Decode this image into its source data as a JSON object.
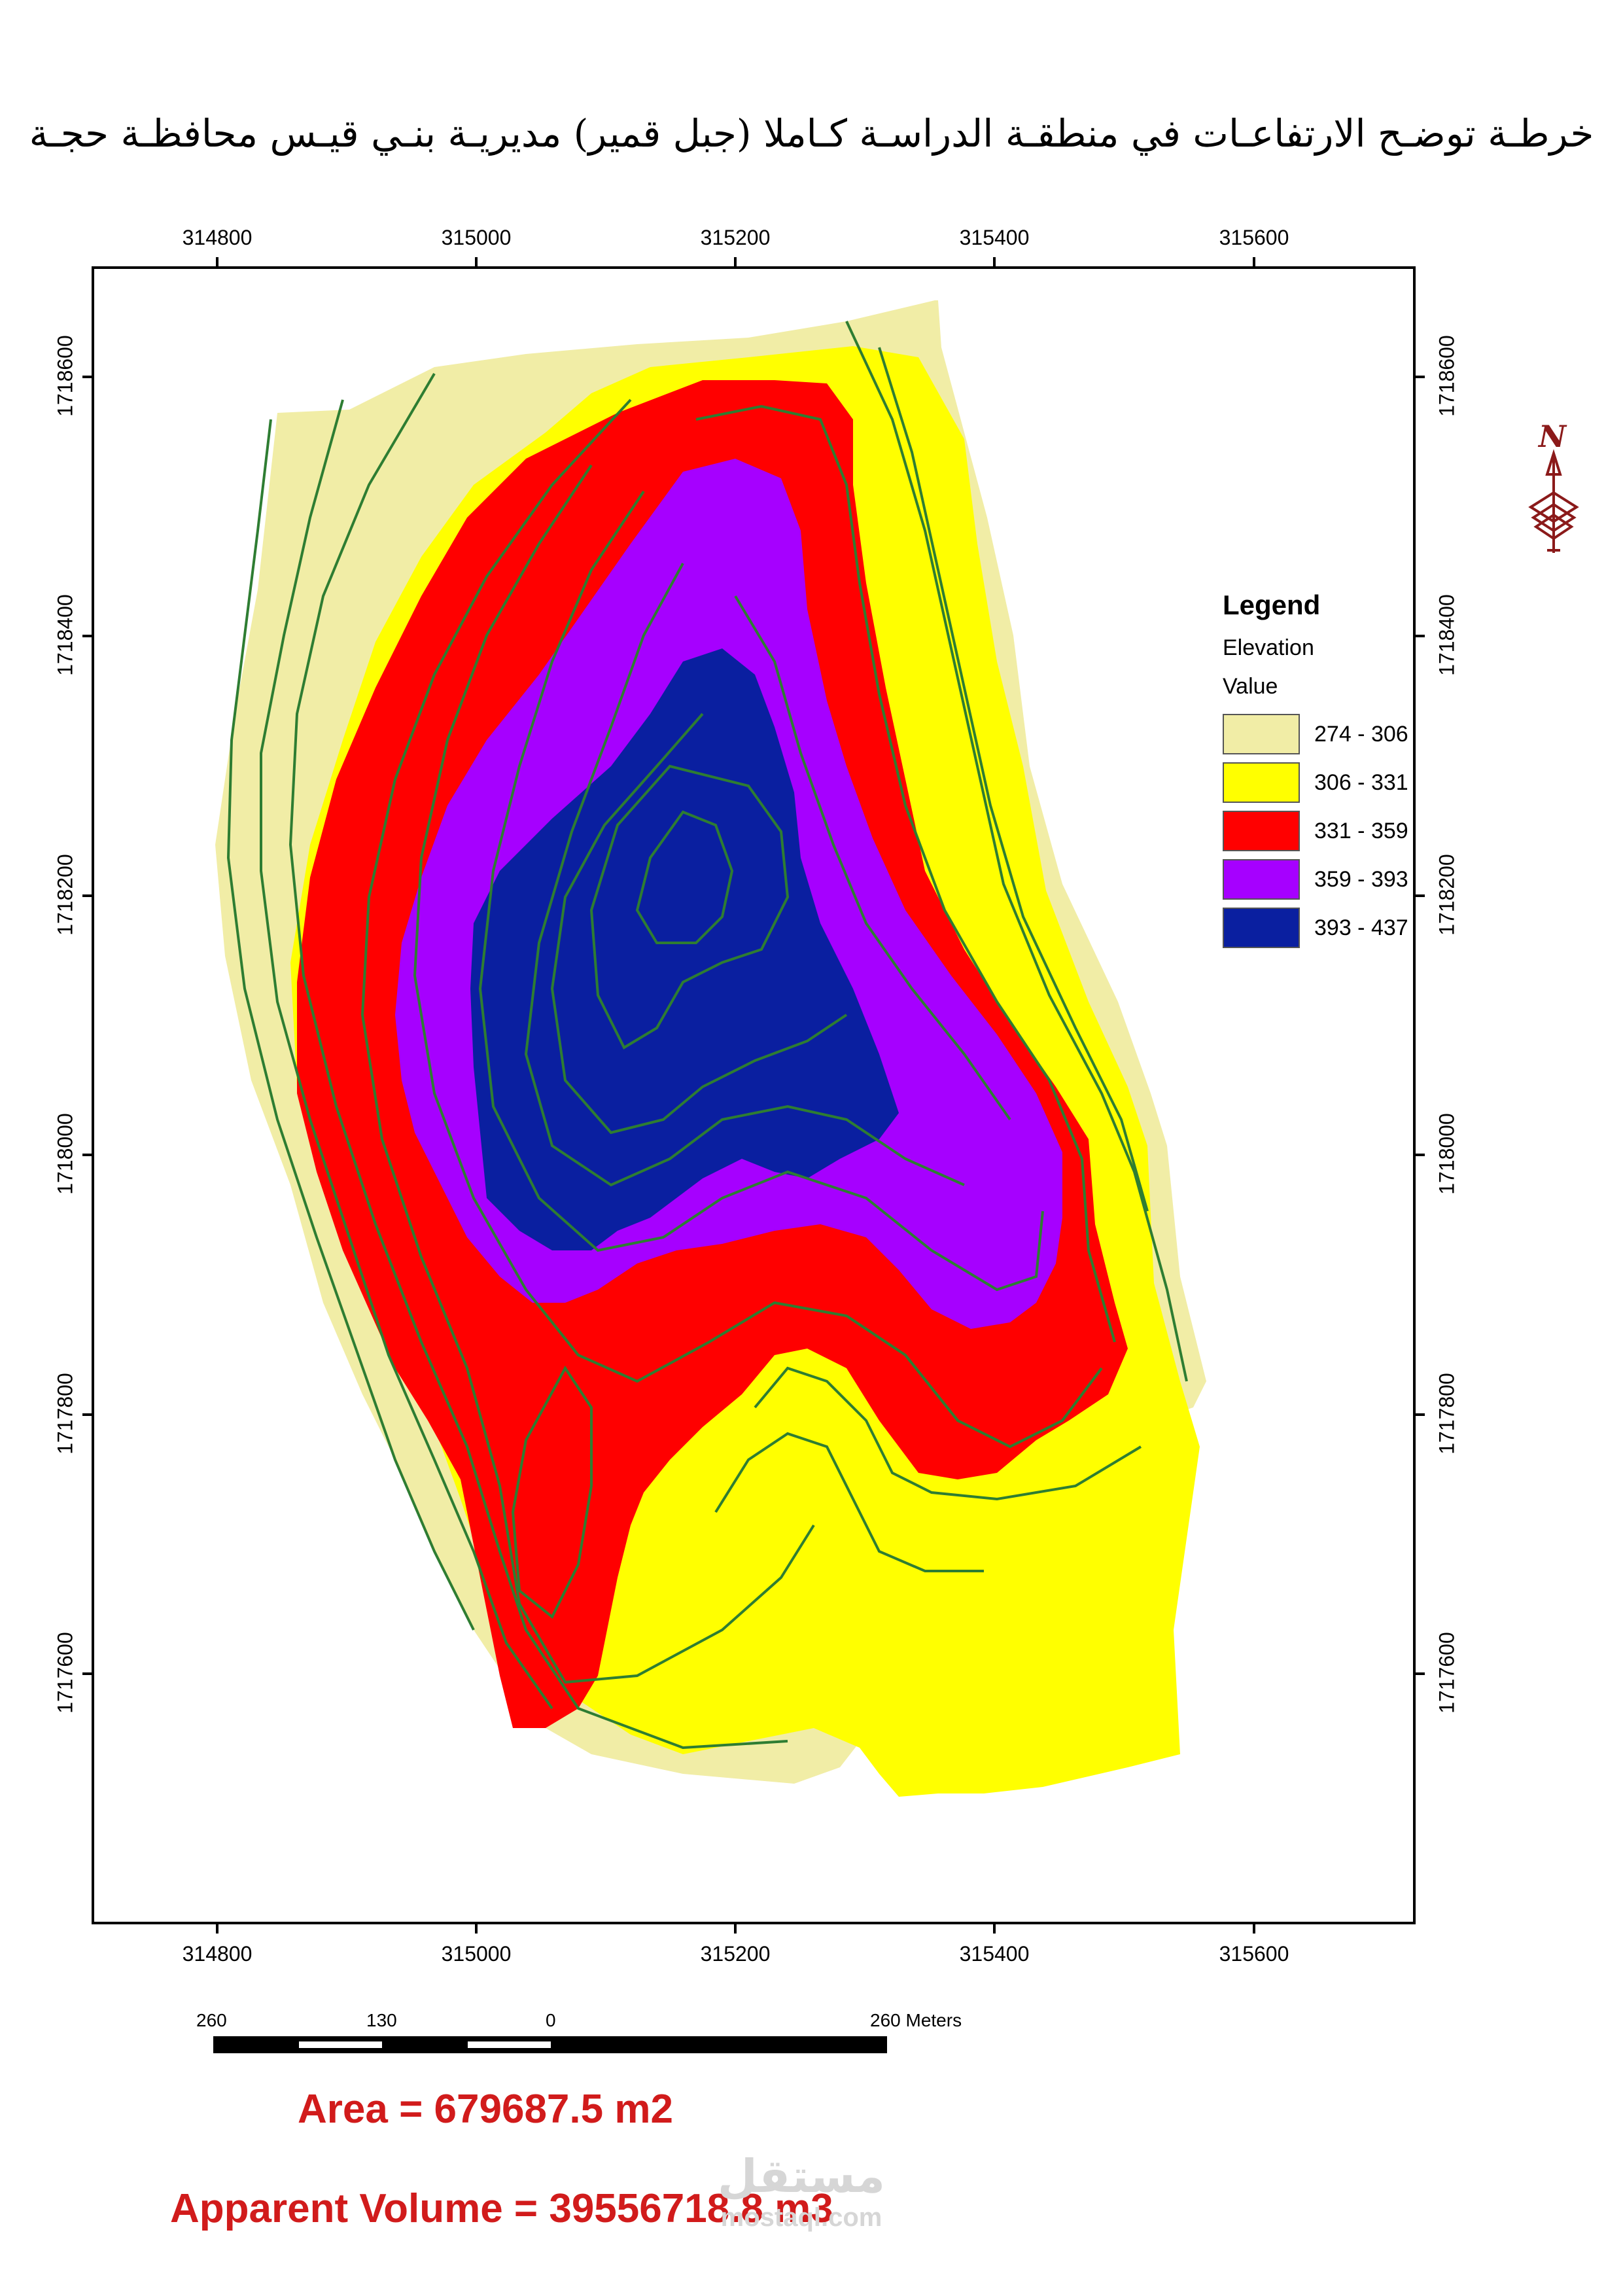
{
  "title": "خرطـة توضـح الارتفاعـات في منطقـة الدراسـة كـاملا (جبل قمير) مديريـة بنـي قيـس محافظـة حجـة",
  "axes": {
    "x_ticks": [
      "314800",
      "315000",
      "315200",
      "315400",
      "315600"
    ],
    "y_ticks": [
      "1718600",
      "1718400",
      "1718200",
      "1718000",
      "1717800",
      "1717600"
    ]
  },
  "legend": {
    "title": "Legend",
    "layer": "Elevation",
    "field": "Value",
    "classes": [
      {
        "label": "274 - 306",
        "color": "#f1eda6"
      },
      {
        "label": "306 - 331",
        "color": "#ffff00"
      },
      {
        "label": "331 - 359",
        "color": "#ff0000"
      },
      {
        "label": "359 - 393",
        "color": "#a600ff"
      },
      {
        "label": "393 - 437",
        "color": "#0a1fa0"
      }
    ]
  },
  "contour_color": "#2e7d32",
  "north_arrow": {
    "label": "N",
    "icon": "north-arrow-icon",
    "color": "#8b1a1a"
  },
  "scale_bar": {
    "labels": [
      "260",
      "130",
      "0",
      "260 Meters"
    ]
  },
  "area_text": "Area = 679687.5 m2",
  "volume_text": "Apparent Volume =  39556718.8 m3",
  "watermark": {
    "arabic": "مستقل",
    "latin": "mostaql.com"
  }
}
